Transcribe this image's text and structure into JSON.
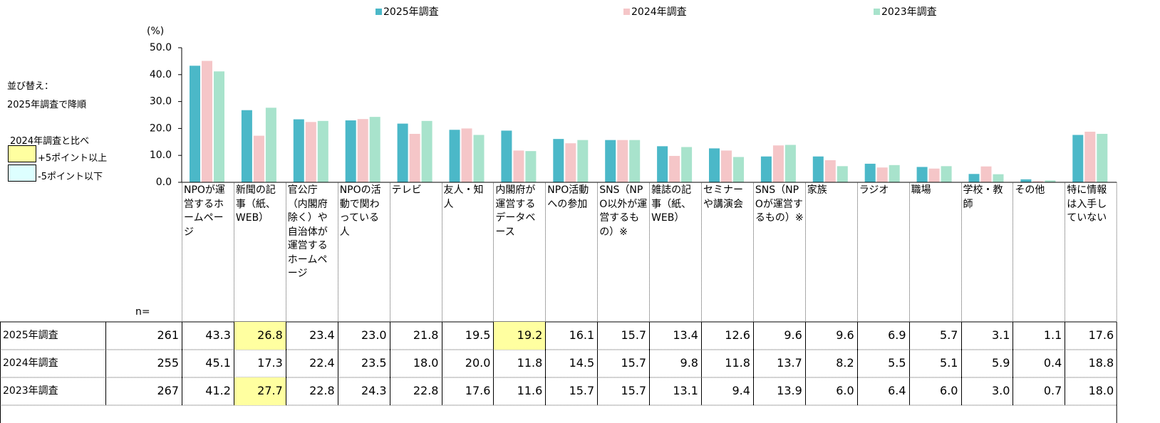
{
  "chart_data": {
    "type": "bar",
    "unit_label": "(%)",
    "sort_note": [
      "並び替え：",
      "2025年調査で降順"
    ],
    "compare_note": {
      "title": "2024年調査と比べ",
      "up": "+5ポイント以上",
      "down": "-5ポイント以下",
      "up_color": "#ffffa0",
      "down_color": "#ddffff"
    },
    "n_label": "n=",
    "categories": [
      "NPOが運営するホームページ",
      "新聞の記事（紙、WEB）",
      "官公庁（内閣府除く）や自治体が運営するホームページ",
      "NPOの活動で関わっている人",
      "テレビ",
      "友人・知人",
      "内閣府が運営するデータベース",
      "NPO活動への参加",
      "SNS（NPO以外が運営するもの）※",
      "雑誌の記事（紙、WEB）",
      "セミナーや講演会",
      "SNS（NPOが運営するもの）※",
      "家族",
      "ラジオ",
      "職場",
      "学校・教師",
      "その他",
      "特に情報は入手していない"
    ],
    "series": [
      {
        "name": "2025年調査",
        "color": "#4bb8c8",
        "n": 261,
        "values": [
          43.3,
          26.8,
          23.4,
          23.0,
          21.8,
          19.5,
          19.2,
          16.1,
          15.7,
          13.4,
          12.6,
          9.6,
          9.6,
          6.9,
          5.7,
          3.1,
          1.1,
          17.6
        ],
        "value_labels": [
          "43.3",
          "26.8",
          "23.4",
          "23.0",
          "21.8",
          "19.5",
          "19.2",
          "16.1",
          "15.7",
          "13.4",
          "12.6",
          "9.6",
          "9.6",
          "6.9",
          "5.7",
          "3.1",
          "1.1",
          "17.6"
        ]
      },
      {
        "name": "2024年調査",
        "color": "#f5c6c8",
        "n": 255,
        "values": [
          45.1,
          17.3,
          22.4,
          23.5,
          18.0,
          20.0,
          11.8,
          14.5,
          15.7,
          9.8,
          11.8,
          13.7,
          8.2,
          5.5,
          5.1,
          5.9,
          0.4,
          18.8
        ],
        "value_labels": [
          "45.1",
          "17.3",
          "22.4",
          "23.5",
          "18.0",
          "20.0",
          "11.8",
          "14.5",
          "15.7",
          "9.8",
          "11.8",
          "13.7",
          "8.2",
          "5.5",
          "5.1",
          "5.9",
          "0.4",
          "18.8"
        ]
      },
      {
        "name": "2023年調査",
        "color": "#a8e3cc",
        "n": 267,
        "values": [
          41.2,
          27.7,
          22.8,
          24.3,
          22.8,
          17.6,
          11.6,
          15.7,
          15.7,
          13.1,
          9.4,
          13.9,
          6.0,
          6.4,
          6.0,
          3.0,
          0.7,
          18.0
        ],
        "value_labels": [
          "41.2",
          "27.7",
          "22.8",
          "24.3",
          "22.8",
          "17.6",
          "11.6",
          "15.7",
          "15.7",
          "13.1",
          "9.4",
          "13.9",
          "6.0",
          "6.4",
          "6.0",
          "3.0",
          "0.7",
          "18.0"
        ]
      }
    ],
    "highlight_cells": [
      {
        "series": 0,
        "index": 1,
        "kind": "up"
      },
      {
        "series": 0,
        "index": 6,
        "kind": "up"
      },
      {
        "series": 2,
        "index": 1,
        "kind": "up"
      }
    ],
    "ylim": [
      0,
      50
    ],
    "yticks": [
      {
        "value": 0,
        "label": "0.0"
      },
      {
        "value": 10,
        "label": "10.0"
      },
      {
        "value": 20,
        "label": "20.0"
      },
      {
        "value": 30,
        "label": "30.0"
      },
      {
        "value": 40,
        "label": "40.0"
      },
      {
        "value": 50,
        "label": "50.0"
      }
    ]
  }
}
